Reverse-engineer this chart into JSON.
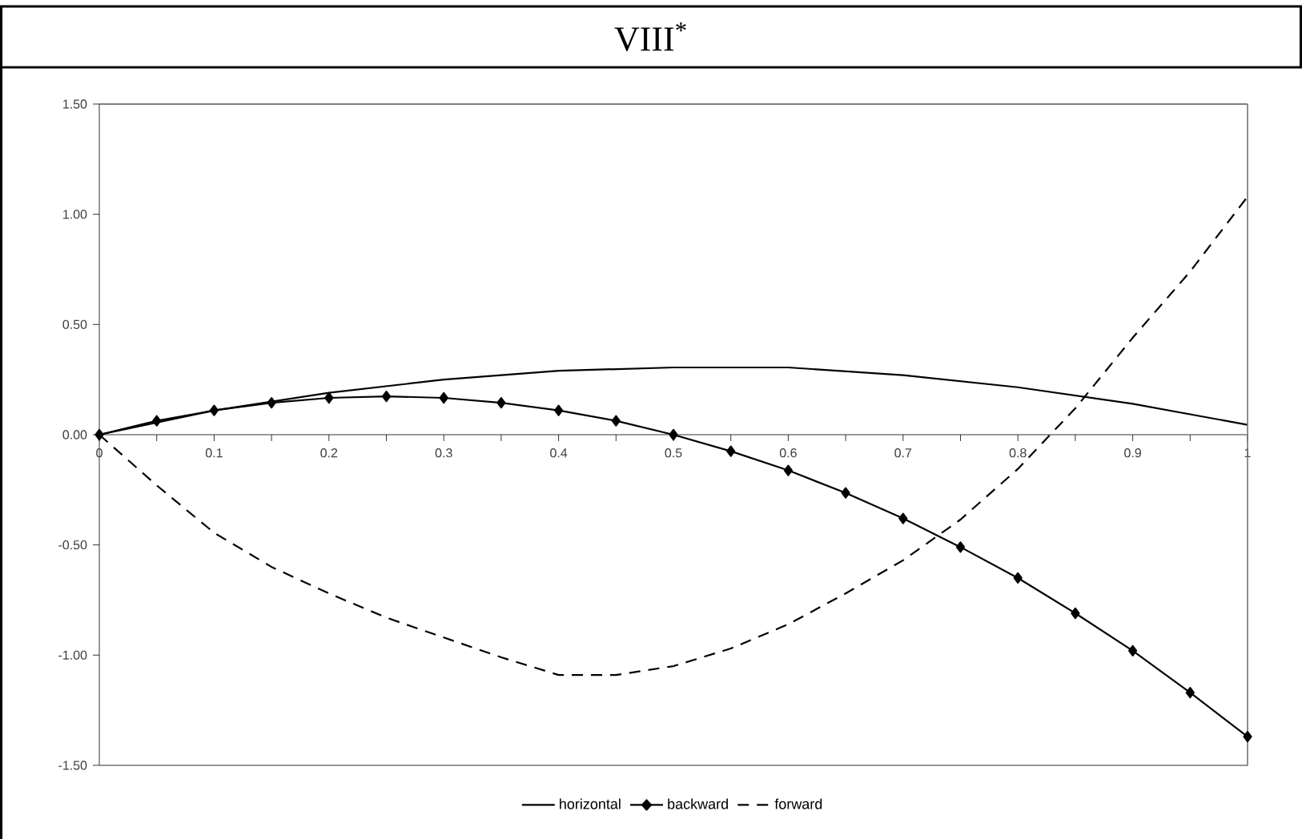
{
  "chart_data": {
    "type": "line",
    "title": "VIII$^{*}$",
    "xlim": [
      0,
      1
    ],
    "ylim": [
      -1.5,
      1.5
    ],
    "xticks": [
      0,
      {
        "value": 0.05,
        "label": null
      },
      {
        "value": 0.1,
        "label": "0.1"
      },
      {
        "value": 0.15,
        "label": null
      },
      {
        "value": 0.2,
        "label": "0.2"
      },
      {
        "value": 0.25,
        "label": null
      },
      {
        "value": 0.3,
        "label": "0.3"
      },
      {
        "value": 0.35,
        "label": null
      },
      {
        "value": 0.4,
        "label": "0.4"
      },
      {
        "value": 0.45,
        "label": null
      },
      {
        "value": 0.5,
        "label": "0.5"
      },
      {
        "value": 0.55,
        "label": null
      },
      {
        "value": 0.6,
        "label": "0.6"
      },
      {
        "value": 0.65,
        "label": null
      },
      {
        "value": 0.7,
        "label": "0.7"
      },
      {
        "value": 0.75,
        "label": null
      },
      {
        "value": 0.8,
        "label": "0.8"
      },
      {
        "value": 0.85,
        "label": null
      },
      {
        "value": 0.9,
        "label": "0.9"
      },
      {
        "value": 0.95,
        "label": null
      },
      1
    ],
    "yticks": [
      {
        "value": -1.5,
        "label": "-1.50"
      },
      {
        "value": -1,
        "label": "-1.00"
      },
      {
        "value": -0.5,
        "label": "-0.50"
      },
      {
        "value": 0,
        "label": "0.00"
      },
      {
        "value": 0.5,
        "label": "0.50"
      },
      {
        "value": 1,
        "label": "1.00"
      },
      {
        "value": 1.5,
        "label": "1.50"
      }
    ],
    "grid": false,
    "legend": "bottom",
    "series": [
      {
        "name": "horizontal",
        "color": "#000000",
        "marker": "none",
        "line_style": "solid",
        "x": [
          0,
          0.1,
          0.2,
          0.3,
          0.4,
          0.5,
          0.6,
          0.7,
          0.8,
          0.9,
          1
        ],
        "values": [
          0,
          0.11,
          0.19,
          0.25,
          0.29,
          0.305,
          0.305,
          0.27,
          0.215,
          0.14,
          0.045
        ]
      },
      {
        "name": "backward",
        "color": "#000000",
        "marker": "diamond",
        "line_style": "solid",
        "x": [
          0,
          0.05,
          0.1,
          0.15,
          0.2,
          0.25,
          0.3,
          0.35,
          0.4,
          0.45,
          0.5,
          0.55,
          0.6,
          0.65,
          0.7,
          0.75,
          0.8,
          0.85,
          0.9,
          0.95,
          1
        ],
        "values": [
          0,
          0.063,
          0.11,
          0.145,
          0.167,
          0.174,
          0.167,
          0.145,
          0.11,
          0.063,
          0,
          -0.075,
          -0.162,
          -0.264,
          -0.38,
          -0.51,
          -0.65,
          -0.81,
          -0.98,
          -1.17,
          -1.37
        ]
      },
      {
        "name": "forward",
        "color": "#000000",
        "marker": "none",
        "line_style": "dashed",
        "x": [
          0,
          0.05,
          0.1,
          0.15,
          0.2,
          0.25,
          0.3,
          0.35,
          0.4,
          0.45,
          0.5,
          0.55,
          0.6,
          0.65,
          0.7,
          0.75,
          0.8,
          0.85,
          0.9,
          0.95,
          1
        ],
        "values": [
          0,
          -0.23,
          -0.445,
          -0.6,
          -0.72,
          -0.83,
          -0.92,
          -1.01,
          -1.09,
          -1.09,
          -1.05,
          -0.97,
          -0.86,
          -0.72,
          -0.57,
          -0.385,
          -0.155,
          0.12,
          0.44,
          0.74,
          1.08
        ]
      }
    ]
  }
}
